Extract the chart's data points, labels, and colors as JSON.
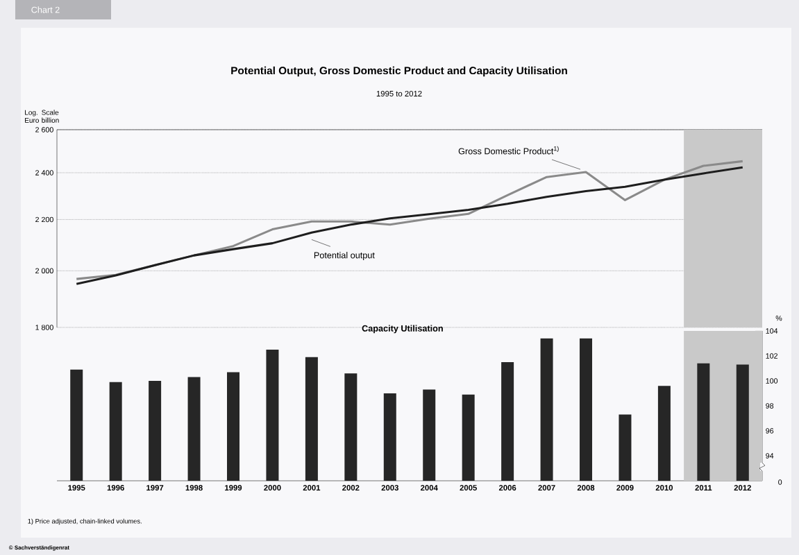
{
  "chart_data": [
    {
      "type": "line",
      "title": "Potential Output, Gross Domestic Product and Capacity Utilisation",
      "subtitle": "1995 to 2012",
      "ylabel": "Log. Scale Euro billion",
      "x": [
        1995,
        1996,
        1997,
        1998,
        1999,
        2000,
        2001,
        2002,
        2003,
        2004,
        2005,
        2006,
        2007,
        2008,
        2009,
        2010,
        2011,
        2012
      ],
      "series": [
        {
          "name": "Gross Domestic Product$^{1)}$",
          "color": "#8a8a8a",
          "values": [
            1970,
            1985,
            2021,
            2058,
            2094,
            2160,
            2192,
            2192,
            2179,
            2203,
            2223,
            2302,
            2381,
            2403,
            2281,
            2369,
            2431,
            2452
          ]
        },
        {
          "name": "Potential output",
          "color": "#1e1e1e",
          "values": [
            1952,
            1983,
            2021,
            2058,
            2082,
            2105,
            2147,
            2179,
            2205,
            2222,
            2240,
            2265,
            2295,
            2319,
            2338,
            2369,
            2397,
            2424
          ]
        }
      ],
      "xlim": [
        1994.5,
        2012.5
      ],
      "ylim": [
        1800,
        2600
      ],
      "yticks": [
        {
          "value": 1800,
          "label": "1 800"
        },
        {
          "value": 2000,
          "label": "2 000"
        },
        {
          "value": 2200,
          "label": "2 200"
        },
        {
          "value": 2400,
          "label": "2 400"
        },
        {
          "value": 2600,
          "label": "2 600"
        }
      ],
      "log": "y",
      "grid": "y",
      "tick_labels": "y",
      "bands": [
        {
          "axis": "x",
          "from": 2010.5,
          "to": 2012.5,
          "color": "#c9c9c9"
        }
      ],
      "annotations": [
        "Chart 2",
        "1) Price adjusted, chain-linked volumes.",
        "© Sachverständigenrat"
      ]
    },
    {
      "type": "bar",
      "ylabel": "%",
      "x": [
        1995,
        1996,
        1997,
        1998,
        1999,
        2000,
        2001,
        2002,
        2003,
        2004,
        2005,
        2006,
        2007,
        2008,
        2009,
        2010,
        2011,
        2012
      ],
      "series": [
        {
          "name": "Capacity Utilisation",
          "color": "#262626",
          "values": [
            100.9,
            99.9,
            100.0,
            100.3,
            100.7,
            102.5,
            101.9,
            100.6,
            99.0,
            99.3,
            98.9,
            101.5,
            103.4,
            103.4,
            97.3,
            99.6,
            101.4,
            101.3
          ]
        }
      ],
      "xlim": [
        1994.5,
        2012.5
      ],
      "xticks": [
        1995,
        1996,
        1997,
        1998,
        1999,
        2000,
        2001,
        2002,
        2003,
        2004,
        2005,
        2006,
        2007,
        2008,
        2009,
        2010,
        2011,
        2012
      ],
      "ylim": [
        92,
        104
      ],
      "yticks": [
        94,
        96,
        98,
        100,
        102,
        104
      ],
      "bands": [
        {
          "axis": "x",
          "from": 2010.5,
          "to": 2012.5,
          "color": "#c9c9c9"
        }
      ],
      "annotations": [
        "0"
      ]
    }
  ]
}
